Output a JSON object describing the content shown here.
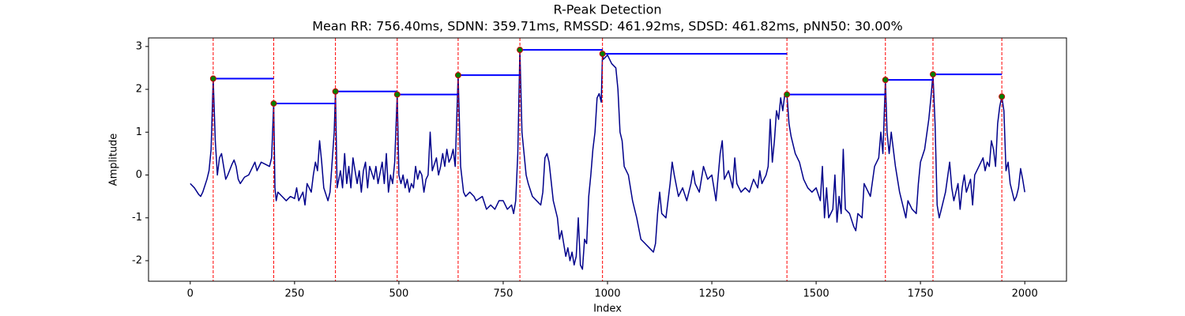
{
  "chart_data": {
    "type": "line",
    "title": "R-Peak Detection",
    "subtitle": "Mean RR: 756.40ms, SDNN: 359.71ms, RMSSD: 461.92ms, SDSD: 461.82ms, pNN50: 30.00%",
    "x_label": "Index",
    "y_label": "Amplitude",
    "xlim": [
      -100,
      2100
    ],
    "ylim": [
      -2.48,
      3.2
    ],
    "xticks": [
      0,
      250,
      500,
      750,
      1000,
      1250,
      1500,
      1750,
      2000
    ],
    "yticks": [
      -2,
      -1,
      0,
      1,
      2,
      3
    ],
    "signal": {
      "color": "#00008b",
      "x": [
        0,
        10,
        20,
        25,
        30,
        40,
        45,
        50,
        55,
        60,
        65,
        70,
        75,
        80,
        85,
        90,
        100,
        105,
        110,
        115,
        120,
        130,
        140,
        150,
        155,
        160,
        170,
        180,
        190,
        195,
        200,
        203,
        206,
        210,
        220,
        230,
        240,
        250,
        255,
        260,
        270,
        275,
        280,
        290,
        295,
        300,
        305,
        310,
        315,
        320,
        330,
        335,
        340,
        345,
        348,
        352,
        360,
        365,
        370,
        375,
        380,
        385,
        390,
        400,
        405,
        410,
        415,
        420,
        425,
        430,
        440,
        445,
        450,
        460,
        465,
        470,
        475,
        480,
        485,
        490,
        496,
        500,
        505,
        510,
        515,
        520,
        525,
        530,
        535,
        540,
        545,
        550,
        555,
        560,
        565,
        570,
        575,
        580,
        590,
        595,
        600,
        605,
        610,
        615,
        620,
        625,
        630,
        635,
        642,
        648,
        655,
        660,
        670,
        680,
        685,
        700,
        710,
        720,
        730,
        740,
        750,
        760,
        770,
        775,
        780,
        785,
        790,
        795,
        800,
        805,
        810,
        820,
        830,
        840,
        845,
        850,
        855,
        860,
        870,
        880,
        885,
        890,
        895,
        900,
        905,
        910,
        915,
        920,
        925,
        930,
        935,
        940,
        945,
        950,
        955,
        960,
        965,
        970,
        975,
        980,
        985,
        988,
        990,
        1000,
        1010,
        1020,
        1025,
        1030,
        1035,
        1040,
        1050,
        1055,
        1060,
        1070,
        1080,
        1090,
        1100,
        1110,
        1115,
        1120,
        1125,
        1130,
        1140,
        1150,
        1155,
        1160,
        1170,
        1180,
        1190,
        1200,
        1205,
        1210,
        1220,
        1230,
        1240,
        1250,
        1260,
        1270,
        1275,
        1280,
        1290,
        1300,
        1305,
        1310,
        1320,
        1330,
        1340,
        1350,
        1360,
        1365,
        1370,
        1380,
        1385,
        1390,
        1395,
        1400,
        1405,
        1410,
        1415,
        1420,
        1425,
        1430,
        1435,
        1440,
        1450,
        1460,
        1470,
        1480,
        1490,
        1500,
        1510,
        1515,
        1520,
        1525,
        1530,
        1540,
        1545,
        1550,
        1555,
        1560,
        1565,
        1570,
        1580,
        1590,
        1595,
        1600,
        1610,
        1615,
        1620,
        1630,
        1640,
        1650,
        1655,
        1660,
        1666,
        1670,
        1675,
        1680,
        1685,
        1690,
        1700,
        1710,
        1715,
        1720,
        1730,
        1740,
        1745,
        1750,
        1760,
        1770,
        1775,
        1780,
        1785,
        1790,
        1795,
        1800,
        1810,
        1820,
        1825,
        1830,
        1840,
        1845,
        1850,
        1855,
        1860,
        1870,
        1875,
        1880,
        1890,
        1900,
        1905,
        1910,
        1915,
        1920,
        1925,
        1930,
        1935,
        1940,
        1945,
        1950,
        1955,
        1960,
        1965,
        1970,
        1975,
        1980,
        1985,
        1990,
        1995,
        2000
      ],
      "values": [
        -0.2,
        -0.3,
        -0.45,
        -0.5,
        -0.4,
        -0.1,
        0.1,
        0.6,
        2.25,
        0.8,
        0.0,
        0.4,
        0.5,
        0.2,
        -0.1,
        0.0,
        0.25,
        0.35,
        0.2,
        -0.1,
        -0.2,
        -0.05,
        0.0,
        0.2,
        0.3,
        0.1,
        0.3,
        0.25,
        0.2,
        0.4,
        1.67,
        -0.3,
        -0.6,
        -0.4,
        -0.5,
        -0.6,
        -0.5,
        -0.55,
        -0.3,
        -0.6,
        -0.4,
        -0.7,
        -0.2,
        -0.4,
        0.0,
        0.3,
        0.1,
        0.8,
        0.3,
        -0.3,
        -0.6,
        -0.4,
        0.3,
        1.0,
        1.95,
        -0.3,
        0.1,
        -0.3,
        0.5,
        -0.2,
        0.2,
        -0.3,
        0.4,
        -0.2,
        0.1,
        -0.4,
        0.1,
        0.3,
        -0.3,
        0.2,
        -0.1,
        0.2,
        -0.2,
        0.3,
        -0.2,
        0.5,
        -0.4,
        0.0,
        -0.2,
        0.3,
        1.88,
        0.0,
        -0.2,
        0.0,
        -0.3,
        -0.1,
        -0.4,
        -0.2,
        -0.3,
        0.2,
        -0.1,
        0.1,
        0.0,
        -0.4,
        -0.1,
        0.0,
        1.0,
        0.1,
        0.4,
        0.0,
        0.2,
        0.5,
        0.2,
        0.6,
        0.3,
        0.4,
        0.6,
        0.2,
        2.33,
        0.2,
        -0.4,
        -0.5,
        -0.4,
        -0.5,
        -0.6,
        -0.5,
        -0.8,
        -0.7,
        -0.8,
        -0.6,
        -0.6,
        -0.8,
        -0.7,
        -0.9,
        -0.6,
        0.5,
        2.92,
        1.0,
        0.5,
        0.0,
        -0.2,
        -0.5,
        -0.6,
        -0.7,
        -0.4,
        0.4,
        0.5,
        0.3,
        -0.6,
        -1.0,
        -1.5,
        -1.3,
        -1.6,
        -1.9,
        -1.7,
        -2.0,
        -1.8,
        -2.1,
        -1.9,
        -1.0,
        -2.1,
        -2.2,
        -1.5,
        -1.6,
        -0.5,
        0.0,
        0.6,
        1.0,
        1.8,
        1.9,
        1.7,
        2.83,
        2.7,
        2.8,
        2.6,
        2.5,
        2.0,
        1.0,
        0.8,
        0.2,
        0.0,
        -0.3,
        -0.6,
        -1.0,
        -1.5,
        -1.6,
        -1.7,
        -1.8,
        -1.6,
        -0.9,
        -0.4,
        -0.9,
        -1.0,
        -0.2,
        0.3,
        0.0,
        -0.5,
        -0.3,
        -0.6,
        -0.2,
        0.1,
        -0.2,
        -0.4,
        0.2,
        -0.1,
        0.0,
        -0.6,
        0.5,
        0.8,
        -0.1,
        0.1,
        -0.3,
        0.4,
        -0.2,
        -0.4,
        -0.3,
        -0.4,
        -0.1,
        -0.3,
        0.1,
        -0.2,
        0.0,
        0.2,
        1.3,
        0.3,
        0.8,
        1.5,
        1.3,
        1.8,
        1.5,
        1.9,
        1.88,
        1.2,
        0.9,
        0.5,
        0.3,
        -0.1,
        -0.3,
        -0.4,
        -0.3,
        -0.6,
        0.2,
        -1.0,
        -0.3,
        -1.0,
        -0.8,
        0.0,
        -1.1,
        -0.5,
        -0.9,
        0.6,
        -0.8,
        -0.9,
        -1.2,
        -1.3,
        -0.9,
        -1.0,
        -0.2,
        -0.3,
        -0.5,
        0.2,
        0.4,
        1.0,
        0.5,
        2.22,
        1.0,
        0.5,
        1.0,
        0.6,
        0.2,
        -0.4,
        -0.8,
        -1.0,
        -0.6,
        -0.8,
        -0.9,
        -0.2,
        0.3,
        0.6,
        1.3,
        1.8,
        2.35,
        1.2,
        -0.7,
        -1.0,
        -0.8,
        -0.4,
        0.3,
        -0.3,
        -0.6,
        -0.2,
        -0.8,
        -0.3,
        0.0,
        -0.4,
        -0.1,
        -0.7,
        0.0,
        0.2,
        0.4,
        0.1,
        0.3,
        0.2,
        0.8,
        0.6,
        0.2,
        1.2,
        1.6,
        1.83,
        1.5,
        0.1,
        0.3,
        -0.2,
        -0.4,
        -0.6,
        -0.5,
        -0.3,
        0.15,
        -0.1,
        -0.4
      ]
    },
    "peaks": {
      "color": "#008000",
      "edgecolor": "#cc0000",
      "x": [
        55,
        200,
        348,
        496,
        642,
        790,
        988,
        1430,
        1666,
        1780,
        1945
      ],
      "values": [
        2.25,
        1.67,
        1.95,
        1.88,
        2.33,
        2.92,
        2.83,
        1.88,
        2.22,
        2.35,
        1.83
      ]
    },
    "peak_line_color": "#ff0000",
    "interval_color": "#0000ff"
  }
}
